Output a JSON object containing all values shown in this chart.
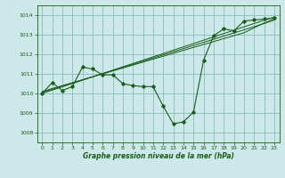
{
  "xlabel": "Graphe pression niveau de la mer (hPa)",
  "bg_color": "#cce8e8",
  "grid_color": "#88bbbb",
  "line_color": "#1a5c1a",
  "xlim": [
    -0.5,
    23.5
  ],
  "ylim": [
    1007.5,
    1014.5
  ],
  "yticks": [
    1008,
    1009,
    1010,
    1011,
    1012,
    1013,
    1014
  ],
  "xticks": [
    0,
    1,
    2,
    3,
    4,
    5,
    6,
    7,
    8,
    9,
    10,
    11,
    12,
    13,
    14,
    15,
    16,
    17,
    18,
    19,
    20,
    21,
    22,
    23
  ],
  "main_series": [
    1010.0,
    1010.55,
    1010.15,
    1010.35,
    1011.35,
    1011.25,
    1010.95,
    1010.95,
    1010.5,
    1010.4,
    1010.35,
    1010.35,
    1009.35,
    1008.45,
    1008.55,
    1009.05,
    1011.7,
    1012.95,
    1013.3,
    1013.2,
    1013.7,
    1013.75,
    1013.8,
    1013.85
  ],
  "trend1": [
    1010.0,
    1010.17,
    1010.34,
    1010.51,
    1010.68,
    1010.85,
    1011.02,
    1011.19,
    1011.36,
    1011.53,
    1011.7,
    1011.87,
    1012.04,
    1012.21,
    1012.38,
    1012.55,
    1012.72,
    1012.89,
    1013.06,
    1013.23,
    1013.4,
    1013.57,
    1013.74,
    1013.9
  ],
  "trend2": [
    1010.05,
    1010.21,
    1010.37,
    1010.53,
    1010.69,
    1010.85,
    1011.01,
    1011.17,
    1011.33,
    1011.49,
    1011.65,
    1011.81,
    1011.97,
    1012.13,
    1012.29,
    1012.45,
    1012.61,
    1012.77,
    1012.93,
    1013.09,
    1013.25,
    1013.41,
    1013.57,
    1013.75
  ],
  "trend3": [
    1010.1,
    1010.25,
    1010.4,
    1010.55,
    1010.7,
    1010.85,
    1011.0,
    1011.15,
    1011.3,
    1011.45,
    1011.6,
    1011.75,
    1011.9,
    1012.05,
    1012.2,
    1012.35,
    1012.5,
    1012.65,
    1012.8,
    1012.95,
    1013.1,
    1013.35,
    1013.6,
    1013.8
  ]
}
